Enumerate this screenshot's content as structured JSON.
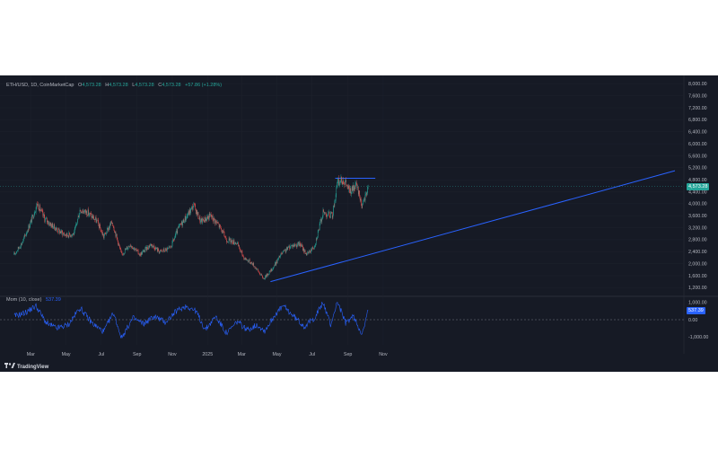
{
  "legend": {
    "symbol": "ETH/USD, 1D, CoinMarketCap",
    "o_label": "O",
    "o": "4,573.28",
    "h_label": "H",
    "h": "4,573.28",
    "l_label": "L",
    "l": "4,573.28",
    "c_label": "C",
    "c": "4,573.28",
    "change": "+57.86 (+1.28%)"
  },
  "osc_legend": {
    "name": "Mom (10, close)",
    "value": "537.39"
  },
  "last_price_tag": "4,573.28",
  "osc_tag": "537.39",
  "brand": "TradingView",
  "colors": {
    "background": "#161a25",
    "up": "#26a69a",
    "down": "#ef5350",
    "trendline": "#2962ff",
    "oscillator": "#2962ff",
    "grid": "#1e222d",
    "text": "#b2b5be"
  },
  "chart_data": [
    {
      "type": "candlestick",
      "title": "ETH/USD, 1D, CoinMarketCap",
      "x_tick_labels": [
        "Mar",
        "May",
        "Jul",
        "Sep",
        "Nov",
        "2025",
        "Mar",
        "May",
        "Jul",
        "Sep",
        "Nov"
      ],
      "y_tick_labels": [
        "1,200.00",
        "1,600.00",
        "2,000.00",
        "2,400.00",
        "2,800.00",
        "3,200.00",
        "3,600.00",
        "4,000.00",
        "4,400.00",
        "4,800.00",
        "5,200.00",
        "5,600.00",
        "6,000.00",
        "6,400.00",
        "6,800.00",
        "7,200.00",
        "7,600.00",
        "8,000.00"
      ],
      "ylim": [
        1000,
        8100
      ],
      "grid": true,
      "series": [
        {
          "values": [
            [
              "2024-02-01",
              2300
            ],
            [
              "2024-02-15",
              2700
            ],
            [
              "2024-03-01",
              3400
            ],
            [
              "2024-03-12",
              4000
            ],
            [
              "2024-03-25",
              3500
            ],
            [
              "2024-04-05",
              3300
            ],
            [
              "2024-04-18",
              3100
            ],
            [
              "2024-05-01",
              2950
            ],
            [
              "2024-05-15",
              3000
            ],
            [
              "2024-05-25",
              3800
            ],
            [
              "2024-06-08",
              3700
            ],
            [
              "2024-06-24",
              3400
            ],
            [
              "2024-07-05",
              2900
            ],
            [
              "2024-07-20",
              3400
            ],
            [
              "2024-08-05",
              2300
            ],
            [
              "2024-08-20",
              2650
            ],
            [
              "2024-09-06",
              2300
            ],
            [
              "2024-09-25",
              2650
            ],
            [
              "2024-10-10",
              2400
            ],
            [
              "2024-10-28",
              2500
            ],
            [
              "2024-11-12",
              3200
            ],
            [
              "2024-11-30",
              3700
            ],
            [
              "2024-12-08",
              3950
            ],
            [
              "2024-12-20",
              3400
            ],
            [
              "2025-01-06",
              3600
            ],
            [
              "2025-01-20",
              3300
            ],
            [
              "2025-02-03",
              2800
            ],
            [
              "2025-02-20",
              2700
            ],
            [
              "2025-03-05",
              2200
            ],
            [
              "2025-03-20",
              2000
            ],
            [
              "2025-04-08",
              1500
            ],
            [
              "2025-04-22",
              1800
            ],
            [
              "2025-05-08",
              2300
            ],
            [
              "2025-05-25",
              2600
            ],
            [
              "2025-06-10",
              2650
            ],
            [
              "2025-06-22",
              2300
            ],
            [
              "2025-07-05",
              2600
            ],
            [
              "2025-07-20",
              3700
            ],
            [
              "2025-08-05",
              3600
            ],
            [
              "2025-08-14",
              4700
            ],
            [
              "2025-08-24",
              4800
            ],
            [
              "2025-09-05",
              4400
            ],
            [
              "2025-09-16",
              4600
            ],
            [
              "2025-09-26",
              3900
            ],
            [
              "2025-10-06",
              4573.28
            ]
          ]
        }
      ],
      "annotations": [
        "ascending trendline",
        "horizontal resistance line"
      ]
    },
    {
      "type": "line",
      "title": "Mom (10, close)",
      "y_tick_labels": [
        "1,000.00",
        "0.00",
        "-1,000.00"
      ],
      "ylim": [
        -1150,
        1150
      ],
      "series": [
        {
          "name": "Mom (10, close)",
          "values": [
            [
              "2024-02-01",
              200
            ],
            [
              "2024-02-20",
              400
            ],
            [
              "2024-03-10",
              800
            ],
            [
              "2024-03-28",
              -200
            ],
            [
              "2024-04-15",
              -500
            ],
            [
              "2024-05-05",
              -300
            ],
            [
              "2024-05-25",
              700
            ],
            [
              "2024-06-15",
              -200
            ],
            [
              "2024-07-05",
              -700
            ],
            [
              "2024-07-22",
              400
            ],
            [
              "2024-08-05",
              -1050
            ],
            [
              "2024-08-25",
              100
            ],
            [
              "2024-09-12",
              -250
            ],
            [
              "2024-10-01",
              200
            ],
            [
              "2024-10-20",
              -150
            ],
            [
              "2024-11-08",
              500
            ],
            [
              "2024-11-25",
              800
            ],
            [
              "2024-12-12",
              500
            ],
            [
              "2024-12-28",
              -600
            ],
            [
              "2025-01-15",
              200
            ],
            [
              "2025-02-03",
              -800
            ],
            [
              "2025-02-22",
              -100
            ],
            [
              "2025-03-10",
              -600
            ],
            [
              "2025-03-28",
              -300
            ],
            [
              "2025-04-10",
              -650
            ],
            [
              "2025-04-28",
              300
            ],
            [
              "2025-05-12",
              800
            ],
            [
              "2025-05-30",
              200
            ],
            [
              "2025-06-18",
              -400
            ],
            [
              "2025-07-05",
              100
            ],
            [
              "2025-07-20",
              1000
            ],
            [
              "2025-08-02",
              -300
            ],
            [
              "2025-08-14",
              1050
            ],
            [
              "2025-08-28",
              -200
            ],
            [
              "2025-09-10",
              200
            ],
            [
              "2025-09-26",
              -850
            ],
            [
              "2025-10-06",
              537.39
            ]
          ]
        }
      ]
    }
  ]
}
